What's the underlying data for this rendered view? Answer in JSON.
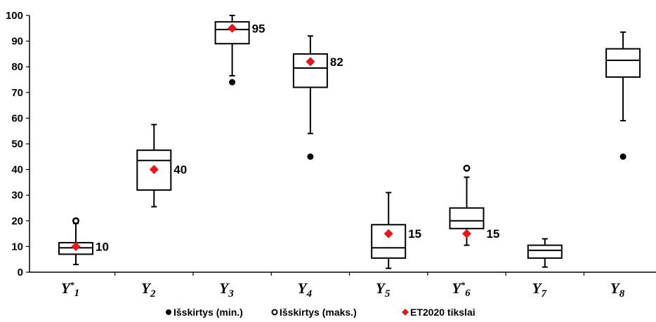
{
  "chart_data": {
    "type": "boxplot",
    "ylim": [
      0,
      100
    ],
    "yticks": [
      0,
      10,
      20,
      30,
      40,
      50,
      60,
      70,
      80,
      90,
      100
    ],
    "categories": [
      {
        "main": "Y",
        "sup": "*",
        "sub": "1"
      },
      {
        "main": "Y",
        "sup": "",
        "sub": "2"
      },
      {
        "main": "Y",
        "sup": "",
        "sub": "3"
      },
      {
        "main": "Y",
        "sup": "",
        "sub": "4"
      },
      {
        "main": "Y",
        "sup": "",
        "sub": "5"
      },
      {
        "main": "Y",
        "sup": "*",
        "sub": "6"
      },
      {
        "main": "Y",
        "sup": "",
        "sub": "7"
      },
      {
        "main": "Y",
        "sup": "",
        "sub": "8"
      }
    ],
    "boxes": [
      {
        "whisker_low": 3,
        "q1": 7,
        "median": 9.5,
        "q3": 11.5,
        "whisker_high": 19,
        "outlier_min": null,
        "outlier_max": 20,
        "target": 10,
        "target_label": "10"
      },
      {
        "whisker_low": 25.5,
        "q1": 32,
        "median": 43.5,
        "q3": 47.5,
        "whisker_high": 57.5,
        "outlier_min": null,
        "outlier_max": null,
        "target": 40,
        "target_label": "40"
      },
      {
        "whisker_low": 76.5,
        "q1": 89,
        "median": 94.5,
        "q3": 97.5,
        "whisker_high": 100,
        "outlier_min": 74,
        "outlier_max": null,
        "target": 95,
        "target_label": "95"
      },
      {
        "whisker_low": 54,
        "q1": 72,
        "median": 79.5,
        "q3": 85,
        "whisker_high": 92,
        "outlier_min": 45,
        "outlier_max": null,
        "target": 82,
        "target_label": "82"
      },
      {
        "whisker_low": 1.5,
        "q1": 5.5,
        "median": 9.5,
        "q3": 18.5,
        "whisker_high": 31,
        "outlier_min": null,
        "outlier_max": null,
        "target": 15,
        "target_label": "15"
      },
      {
        "whisker_low": 10.5,
        "q1": 17,
        "median": 20,
        "q3": 25,
        "whisker_high": 37,
        "outlier_min": null,
        "outlier_max": 40.5,
        "target": 15,
        "target_label": "15"
      },
      {
        "whisker_low": 2,
        "q1": 5.5,
        "median": 8.5,
        "q3": 10.5,
        "whisker_high": 13,
        "outlier_min": null,
        "outlier_max": null,
        "target": null,
        "target_label": ""
      },
      {
        "whisker_low": 59,
        "q1": 76,
        "median": 82.5,
        "q3": 87,
        "whisker_high": 93.5,
        "outlier_min": 45,
        "outlier_max": null,
        "target": null,
        "target_label": ""
      }
    ],
    "legend": [
      {
        "marker": "filled-circle",
        "label": "Išskirtys (min.)"
      },
      {
        "marker": "open-circle",
        "label": "Išskirtys (maks.)"
      },
      {
        "marker": "red-diamond",
        "label": "ET2020 tikslai"
      }
    ],
    "colors": {
      "box": "#000000",
      "target": "#e8161b"
    }
  }
}
